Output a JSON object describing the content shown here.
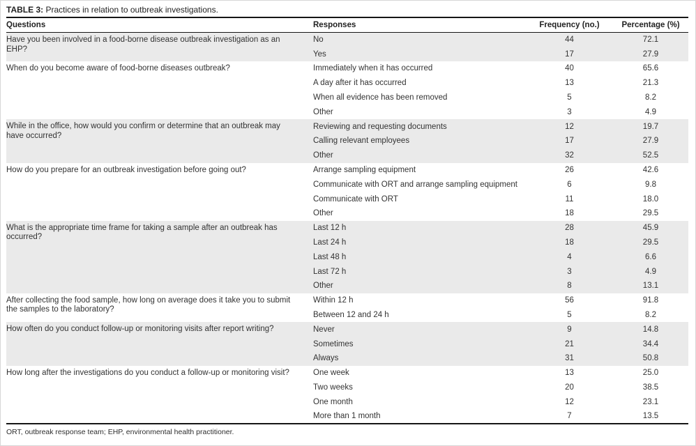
{
  "table": {
    "title_label": "TABLE 3:",
    "title_text": " Practices in relation to outbreak investigations.",
    "columns": [
      "Questions",
      "Responses",
      "Frequency (no.)",
      "Percentage (%)"
    ],
    "groups": [
      {
        "question": "Have you been involved in a food-borne disease outbreak investigation as an EHP?",
        "rows": [
          {
            "response": "No",
            "frequency": "44",
            "percentage": "72.1"
          },
          {
            "response": "Yes",
            "frequency": "17",
            "percentage": "27.9"
          }
        ]
      },
      {
        "question": "When do you become aware of food-borne diseases outbreak?",
        "rows": [
          {
            "response": "Immediately when it has occurred",
            "frequency": "40",
            "percentage": "65.6"
          },
          {
            "response": "A day after it has occurred",
            "frequency": "13",
            "percentage": "21.3"
          },
          {
            "response": "When all evidence has been removed",
            "frequency": "5",
            "percentage": "8.2"
          },
          {
            "response": "Other",
            "frequency": "3",
            "percentage": "4.9"
          }
        ]
      },
      {
        "question": "While in the office, how would you confirm or determine that an outbreak may have occurred?",
        "rows": [
          {
            "response": "Reviewing and requesting documents",
            "frequency": "12",
            "percentage": "19.7"
          },
          {
            "response": "Calling relevant employees",
            "frequency": "17",
            "percentage": "27.9"
          },
          {
            "response": "Other",
            "frequency": "32",
            "percentage": "52.5"
          }
        ]
      },
      {
        "question": "How do you prepare for an outbreak investigation before going out?",
        "rows": [
          {
            "response": "Arrange sampling equipment",
            "frequency": "26",
            "percentage": "42.6"
          },
          {
            "response": "Communicate with ORT and arrange sampling equipment",
            "frequency": "6",
            "percentage": "9.8"
          },
          {
            "response": "Communicate with ORT",
            "frequency": "11",
            "percentage": "18.0"
          },
          {
            "response": "Other",
            "frequency": "18",
            "percentage": "29.5"
          }
        ]
      },
      {
        "question": "What is the appropriate time frame for taking a sample after an outbreak has occurred?",
        "rows": [
          {
            "response": "Last 12 h",
            "frequency": "28",
            "percentage": "45.9"
          },
          {
            "response": "Last 24 h",
            "frequency": "18",
            "percentage": "29.5"
          },
          {
            "response": "Last 48 h",
            "frequency": "4",
            "percentage": "6.6"
          },
          {
            "response": "Last 72 h",
            "frequency": "3",
            "percentage": "4.9"
          },
          {
            "response": "Other",
            "frequency": "8",
            "percentage": "13.1"
          }
        ]
      },
      {
        "question": "After collecting the food sample, how long on average does it take you to submit the samples to the laboratory?",
        "rows": [
          {
            "response": "Within 12 h",
            "frequency": "56",
            "percentage": "91.8"
          },
          {
            "response": "Between 12 and 24 h",
            "frequency": "5",
            "percentage": "8.2"
          }
        ]
      },
      {
        "question": "How often do you conduct follow-up or monitoring visits after report writing?",
        "rows": [
          {
            "response": "Never",
            "frequency": "9",
            "percentage": "14.8"
          },
          {
            "response": "Sometimes",
            "frequency": "21",
            "percentage": "34.4"
          },
          {
            "response": "Always",
            "frequency": "31",
            "percentage": "50.8"
          }
        ]
      },
      {
        "question": "How long after the investigations do you conduct a follow-up or monitoring visit?",
        "rows": [
          {
            "response": "One week",
            "frequency": "13",
            "percentage": "25.0"
          },
          {
            "response": "Two weeks",
            "frequency": "20",
            "percentage": "38.5"
          },
          {
            "response": "One month",
            "frequency": "12",
            "percentage": "23.1"
          },
          {
            "response": "More than 1 month",
            "frequency": "7",
            "percentage": "13.5"
          }
        ]
      }
    ],
    "footnote": "ORT, outbreak response team; EHP, environmental health practitioner."
  },
  "colors": {
    "shade": "#eaeaea",
    "rule": "#151515",
    "text": "#333333",
    "page_border": "#d7d7d7"
  }
}
